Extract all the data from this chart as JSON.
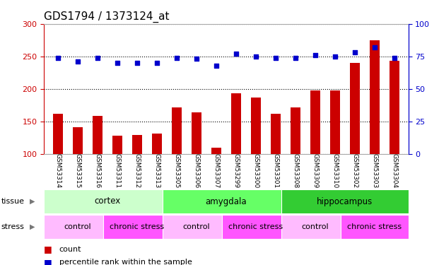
{
  "title": "GDS1794 / 1373124_at",
  "samples": [
    "GSM53314",
    "GSM53315",
    "GSM53316",
    "GSM53311",
    "GSM53312",
    "GSM53313",
    "GSM53305",
    "GSM53306",
    "GSM53307",
    "GSM53299",
    "GSM53300",
    "GSM53301",
    "GSM53308",
    "GSM53309",
    "GSM53310",
    "GSM53302",
    "GSM53303",
    "GSM53304"
  ],
  "counts": [
    162,
    141,
    158,
    128,
    129,
    131,
    171,
    164,
    109,
    193,
    186,
    161,
    171,
    197,
    197,
    240,
    275,
    243
  ],
  "percentiles": [
    74,
    71,
    74,
    70,
    70,
    70,
    74,
    73,
    68,
    77,
    75,
    74,
    74,
    76,
    75,
    78,
    82,
    74
  ],
  "bar_color": "#cc0000",
  "dot_color": "#0000cc",
  "tissues": [
    {
      "label": "cortex",
      "start": 0,
      "end": 6,
      "color": "#ccffcc"
    },
    {
      "label": "amygdala",
      "start": 6,
      "end": 12,
      "color": "#66ff66"
    },
    {
      "label": "hippocampus",
      "start": 12,
      "end": 18,
      "color": "#33cc33"
    }
  ],
  "stress_groups": [
    {
      "label": "control",
      "start": 0,
      "end": 3,
      "color": "#ffccff"
    },
    {
      "label": "chronic stress",
      "start": 3,
      "end": 6,
      "color": "#ff66ff"
    },
    {
      "label": "control",
      "start": 6,
      "end": 9,
      "color": "#ffccff"
    },
    {
      "label": "chronic stress",
      "start": 9,
      "end": 12,
      "color": "#ff66ff"
    },
    {
      "label": "control",
      "start": 12,
      "end": 15,
      "color": "#ffccff"
    },
    {
      "label": "chronic stress",
      "start": 15,
      "end": 18,
      "color": "#ff66ff"
    }
  ],
  "ylim_left": [
    100,
    300
  ],
  "ylim_right": [
    0,
    100
  ],
  "yticks_left": [
    100,
    150,
    200,
    250,
    300
  ],
  "yticks_right": [
    0,
    25,
    50,
    75,
    100
  ],
  "axis_color_left": "#cc0000",
  "axis_color_right": "#0000cc",
  "legend_count_color": "#cc0000",
  "legend_pct_color": "#0000cc",
  "title_fontsize": 11
}
